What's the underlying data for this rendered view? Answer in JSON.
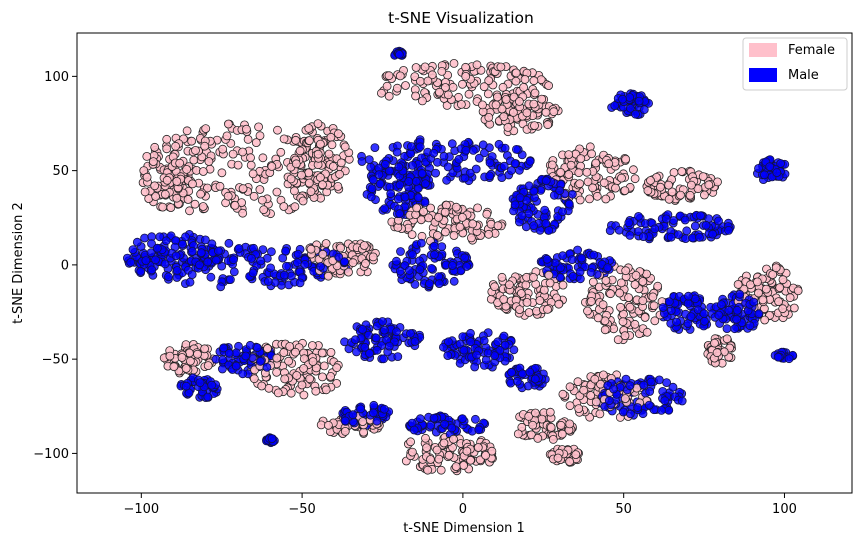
{
  "chart_data": {
    "type": "scatter",
    "title": "t-SNE Visualization",
    "xlabel": "t-SNE Dimension 1",
    "ylabel": "t-SNE Dimension 2",
    "xlim": [
      -120,
      121
    ],
    "ylim": [
      -121,
      123
    ],
    "xticks": [
      -100,
      -50,
      0,
      50,
      100
    ],
    "yticks": [
      -100,
      -50,
      0,
      50,
      100
    ],
    "legend_position": "top-right",
    "grid": false,
    "series": [
      {
        "name": "Female",
        "color": "#ffc0cb",
        "edge_color": "#222222",
        "clusters": [
          {
            "cx": -70,
            "cy": 50,
            "rx": 30,
            "ry": 25
          },
          {
            "cx": -92,
            "cy": 45,
            "rx": 8,
            "ry": 15
          },
          {
            "cx": -45,
            "cy": 55,
            "rx": 10,
            "ry": 20
          },
          {
            "cx": 0,
            "cy": 95,
            "rx": 27,
            "ry": 12
          },
          {
            "cx": 18,
            "cy": 80,
            "rx": 12,
            "ry": 10
          },
          {
            "cx": -38,
            "cy": 3,
            "rx": 12,
            "ry": 10
          },
          {
            "cx": -5,
            "cy": 22,
            "rx": 18,
            "ry": 10
          },
          {
            "cx": 40,
            "cy": 48,
            "rx": 14,
            "ry": 15
          },
          {
            "cx": 68,
            "cy": 42,
            "rx": 12,
            "ry": 8
          },
          {
            "cx": 50,
            "cy": -20,
            "rx": 12,
            "ry": 20
          },
          {
            "cx": 45,
            "cy": -70,
            "rx": 14,
            "ry": 12
          },
          {
            "cx": 25,
            "cy": -85,
            "rx": 10,
            "ry": 8
          },
          {
            "cx": -5,
            "cy": -100,
            "rx": 15,
            "ry": 10
          },
          {
            "cx": 32,
            "cy": -101,
            "rx": 5,
            "ry": 4
          },
          {
            "cx": -85,
            "cy": -50,
            "rx": 8,
            "ry": 8
          },
          {
            "cx": -52,
            "cy": -55,
            "rx": 15,
            "ry": 15
          },
          {
            "cx": -35,
            "cy": -85,
            "rx": 10,
            "ry": 5
          },
          {
            "cx": 95,
            "cy": -15,
            "rx": 10,
            "ry": 15
          },
          {
            "cx": 20,
            "cy": -15,
            "rx": 12,
            "ry": 12
          },
          {
            "cx": 80,
            "cy": -45,
            "rx": 4,
            "ry": 8
          }
        ]
      },
      {
        "name": "Male",
        "color": "#0000ff",
        "edge_color": "#111144",
        "clusters": [
          {
            "cx": -70,
            "cy": 0,
            "rx": 35,
            "ry": 12
          },
          {
            "cx": -90,
            "cy": 5,
            "rx": 15,
            "ry": 12
          },
          {
            "cx": -5,
            "cy": 55,
            "rx": 28,
            "ry": 12
          },
          {
            "cx": -20,
            "cy": 40,
            "rx": 10,
            "ry": 15
          },
          {
            "cx": 25,
            "cy": 32,
            "rx": 10,
            "ry": 15
          },
          {
            "cx": -10,
            "cy": 0,
            "rx": 12,
            "ry": 12
          },
          {
            "cx": 35,
            "cy": 0,
            "rx": 12,
            "ry": 8
          },
          {
            "cx": 65,
            "cy": 20,
            "rx": 20,
            "ry": 7
          },
          {
            "cx": 52,
            "cy": 85,
            "rx": 6,
            "ry": 6
          },
          {
            "cx": 96,
            "cy": 50,
            "rx": 5,
            "ry": 6
          },
          {
            "cx": 70,
            "cy": -25,
            "rx": 8,
            "ry": 10
          },
          {
            "cx": 85,
            "cy": -25,
            "rx": 8,
            "ry": 10
          },
          {
            "cx": 5,
            "cy": -45,
            "rx": 12,
            "ry": 10
          },
          {
            "cx": -25,
            "cy": -40,
            "rx": 12,
            "ry": 10
          },
          {
            "cx": -68,
            "cy": -50,
            "rx": 10,
            "ry": 8
          },
          {
            "cx": -82,
            "cy": -65,
            "rx": 6,
            "ry": 6
          },
          {
            "cx": -30,
            "cy": -80,
            "rx": 8,
            "ry": 6
          },
          {
            "cx": 55,
            "cy": -70,
            "rx": 14,
            "ry": 10
          },
          {
            "cx": 20,
            "cy": -60,
            "rx": 6,
            "ry": 6
          },
          {
            "cx": -5,
            "cy": -85,
            "rx": 12,
            "ry": 5
          },
          {
            "cx": 100,
            "cy": -48,
            "rx": 3,
            "ry": 2
          },
          {
            "cx": -60,
            "cy": -93,
            "rx": 1.5,
            "ry": 1.5
          },
          {
            "cx": -20,
            "cy": 112,
            "rx": 1.5,
            "ry": 1.5
          }
        ]
      }
    ]
  }
}
